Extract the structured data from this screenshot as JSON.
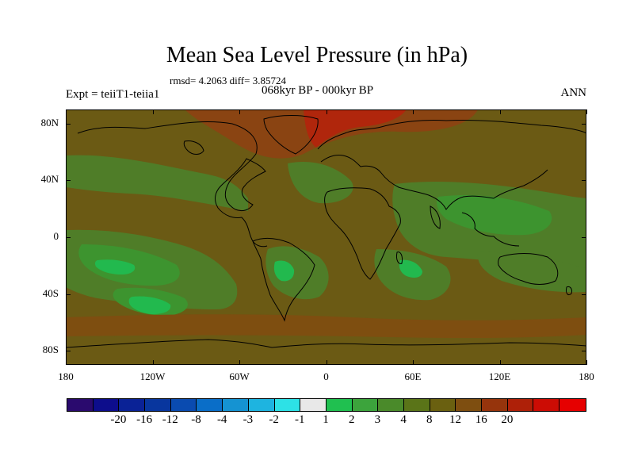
{
  "title": "Mean Sea Level Pressure (in hPa)",
  "stats": "rmsd= 4.2063 diff= 3.85724",
  "experiment": "Expt = teiiT1-teiia1",
  "period": "068kyr BP - 000kyr BP",
  "season": "ANN",
  "axes": {
    "y_ticks": [
      {
        "label": "80N",
        "lat": 80
      },
      {
        "label": "40N",
        "lat": 40
      },
      {
        "label": "0",
        "lat": 0
      },
      {
        "label": "40S",
        "lat": -40
      },
      {
        "label": "80S",
        "lat": -80
      }
    ],
    "x_ticks": [
      {
        "label": "180",
        "lon": -180
      },
      {
        "label": "120W",
        "lon": -120
      },
      {
        "label": "60W",
        "lon": -60
      },
      {
        "label": "0",
        "lon": 0
      },
      {
        "label": "60E",
        "lon": 60
      },
      {
        "label": "120E",
        "lon": 120
      },
      {
        "label": "180",
        "lon": 180
      }
    ],
    "lat_range": [
      -90,
      90
    ],
    "lon_range": [
      -180,
      180
    ]
  },
  "colorbar": {
    "colors": [
      "#2a0a6e",
      "#0d0d8c",
      "#0a2296",
      "#08369e",
      "#0a4bb0",
      "#0a6ec8",
      "#1593d2",
      "#1eb4e0",
      "#2de1e6",
      "#e8e8e8",
      "#20c050",
      "#3ca43c",
      "#4a8a2a",
      "#5a7418",
      "#6a6010",
      "#7e4e10",
      "#96340c",
      "#ae2008",
      "#cc0c04",
      "#e60000"
    ],
    "labels": [
      {
        "text": "-20",
        "boundary": 1
      },
      {
        "text": "-16",
        "boundary": 2
      },
      {
        "text": "-12",
        "boundary": 3
      },
      {
        "text": "-8",
        "boundary": 4
      },
      {
        "text": "-4",
        "boundary": 5
      },
      {
        "text": "-3",
        "boundary": 6
      },
      {
        "text": "-2",
        "boundary": 7
      },
      {
        "text": "-1",
        "boundary": 8
      },
      {
        "text": "1",
        "boundary": 9
      },
      {
        "text": "2",
        "boundary": 10
      },
      {
        "text": "3",
        "boundary": 11
      },
      {
        "text": "4",
        "boundary": 12
      },
      {
        "text": "8",
        "boundary": 13
      },
      {
        "text": "12",
        "boundary": 14
      },
      {
        "text": "16",
        "boundary": 15
      },
      {
        "text": "20",
        "boundary": 16
      }
    ]
  },
  "field_colors": {
    "base": "#6b5a14",
    "positive_low": "#4f7d28",
    "positive_mid": "#3d942f",
    "positive_high": "#22b94e",
    "strong": "#8a4412",
    "max": "#b0260c"
  }
}
